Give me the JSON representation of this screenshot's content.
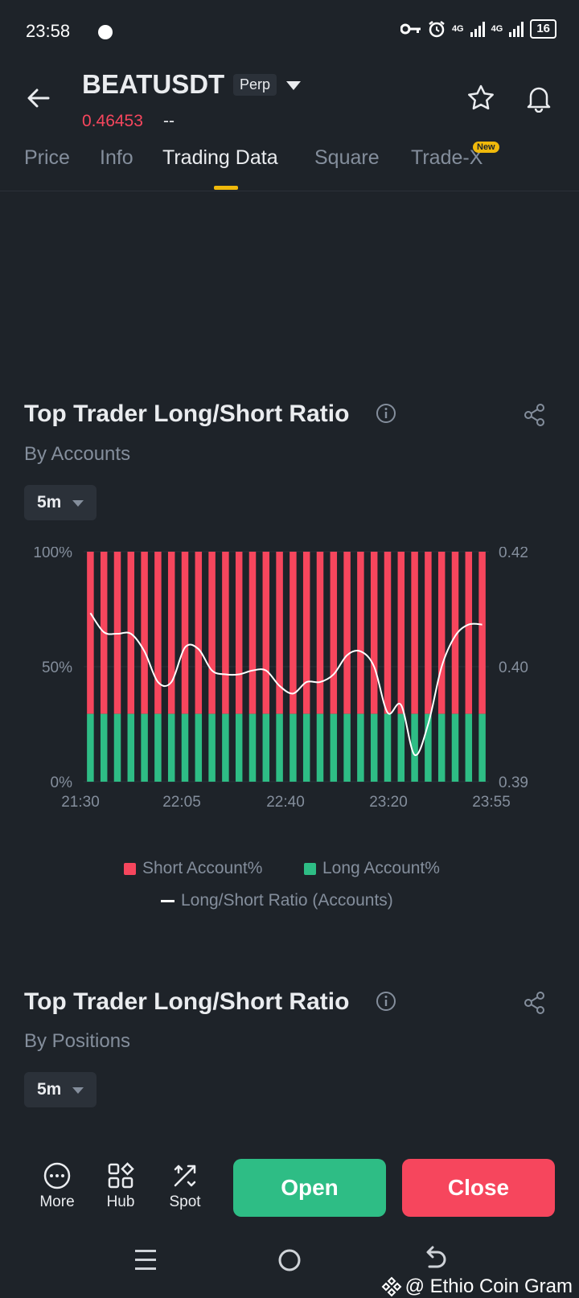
{
  "status_bar": {
    "time": "23:58",
    "network_1": "4G",
    "network_2": "4G",
    "battery": "16"
  },
  "header": {
    "symbol": "BEATUSDT",
    "contract_type": "Perp",
    "price": "0.46453",
    "price_change": "--",
    "price_color": "#f6465d"
  },
  "tabs": [
    {
      "label": "Price",
      "active": false
    },
    {
      "label": "Info",
      "active": false
    },
    {
      "label": "Trading Data",
      "active": true
    },
    {
      "label": "Square",
      "active": false
    },
    {
      "label": "Trade-X",
      "active": false,
      "badge": "New"
    }
  ],
  "section_accounts": {
    "title": "Top Trader Long/Short Ratio",
    "subtitle": "By Accounts",
    "interval": "5m"
  },
  "chart_data": {
    "type": "bar",
    "subtype": "stacked-bar-with-line",
    "x_ticks": [
      "21:30",
      "22:05",
      "22:40",
      "23:20",
      "23:55"
    ],
    "left_axis_ticks": [
      "100%",
      "50%",
      "0%"
    ],
    "right_axis_ticks": [
      "0.42",
      "0.40",
      "0.39"
    ],
    "ylim_left": [
      0,
      100
    ],
    "ylim_right": [
      0.39,
      0.42
    ],
    "bar_count": 30,
    "series": [
      {
        "name": "Short Account%",
        "color": "#f6465d",
        "values": [
          70.5,
          70.5,
          70.5,
          70.5,
          70.5,
          70.5,
          70.5,
          70.5,
          70.5,
          70.5,
          70.5,
          70.5,
          70.5,
          70.5,
          70.5,
          70.5,
          70.5,
          70.5,
          70.5,
          70.5,
          70.5,
          70.5,
          70.5,
          70.5,
          70.5,
          70.5,
          70.5,
          70.5,
          70.5,
          70.5
        ]
      },
      {
        "name": "Long Account%",
        "color": "#2ebd85",
        "values": [
          29.5,
          29.5,
          29.5,
          29.5,
          29.5,
          29.5,
          29.5,
          29.5,
          29.5,
          29.5,
          29.5,
          29.5,
          29.5,
          29.5,
          29.5,
          29.5,
          29.5,
          29.5,
          29.5,
          29.5,
          29.5,
          29.5,
          29.5,
          29.5,
          29.5,
          29.5,
          29.5,
          29.5,
          29.5,
          29.5
        ]
      }
    ],
    "line": {
      "name": "Long/Short Ratio (Accounts)",
      "color": "#ffffff",
      "values": [
        0.412,
        0.4095,
        0.4093,
        0.4093,
        0.407,
        0.403,
        0.403,
        0.4075,
        0.4073,
        0.4045,
        0.404,
        0.404,
        0.4045,
        0.4045,
        0.4025,
        0.4015,
        0.403,
        0.403,
        0.404,
        0.4065,
        0.407,
        0.405,
        0.399,
        0.4,
        0.3935,
        0.3975,
        0.405,
        0.409,
        0.4105,
        0.4105
      ]
    },
    "grid": true,
    "legend_position": "bottom"
  },
  "section_positions": {
    "title": "Top Trader Long/Short Ratio",
    "subtitle": "By Positions",
    "interval": "5m"
  },
  "bottom_nav": {
    "more": "More",
    "hub": "Hub",
    "spot": "Spot",
    "open": "Open",
    "close": "Close"
  },
  "watermark": "@ Ethio Coin Gram"
}
